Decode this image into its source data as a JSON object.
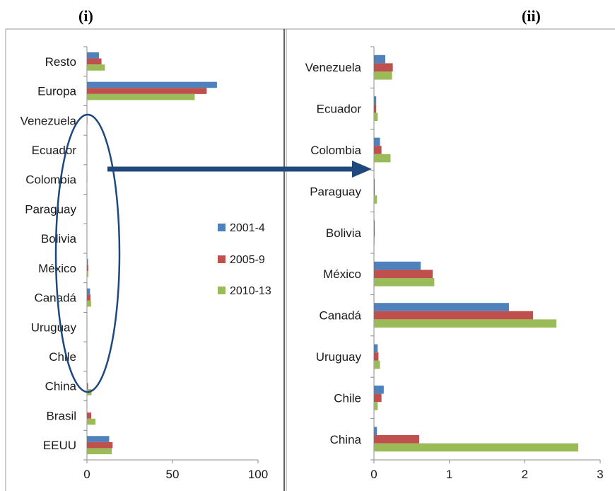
{
  "panel_labels": [
    "(i)",
    "(ii)"
  ],
  "colors": {
    "s2001": "#4f81bd",
    "s2005": "#c0504d",
    "s2010": "#9bbb59",
    "annotation": "#1f497d"
  },
  "legend": {
    "items": [
      "2001-4",
      "2005-9",
      "2010-13"
    ]
  },
  "chart_data": [
    {
      "type": "bar",
      "orientation": "horizontal",
      "panel": "(i)",
      "categories": [
        "Resto",
        "Europa",
        "Venezuela",
        "Ecuador",
        "Colombia",
        "Paraguay",
        "Bolivia",
        "México",
        "Canadá",
        "Uruguay",
        "Chile",
        "China",
        "Brasil",
        "EEUU"
      ],
      "series": [
        {
          "name": "2001-4",
          "values": [
            7,
            76,
            0.15,
            0.03,
            0.08,
            0.01,
            0.01,
            0.6,
            1.8,
            0.05,
            0.13,
            0.05,
            0,
            13
          ]
        },
        {
          "name": "2005-9",
          "values": [
            8.5,
            70,
            0.25,
            0.03,
            0.1,
            0.01,
            0.01,
            0.78,
            2.1,
            0.06,
            0.1,
            0.6,
            2.5,
            15
          ]
        },
        {
          "name": "2010-13",
          "values": [
            10.5,
            63,
            0.24,
            0.05,
            0.22,
            0.04,
            0.01,
            0.8,
            2.42,
            0.08,
            0.05,
            2.7,
            5,
            14.5
          ]
        }
      ],
      "xlim": [
        0,
        100
      ],
      "xticks": [
        "0",
        "50",
        "100"
      ],
      "legend_position": "right"
    },
    {
      "type": "bar",
      "orientation": "horizontal",
      "panel": "(ii)",
      "categories": [
        "Venezuela",
        "Ecuador",
        "Colombia",
        "Paraguay",
        "Bolivia",
        "México",
        "Canadá",
        "Uruguay",
        "Chile",
        "China"
      ],
      "series": [
        {
          "name": "2001-4",
          "values": [
            0.15,
            0.03,
            0.08,
            0.01,
            0.01,
            0.62,
            1.79,
            0.05,
            0.13,
            0.04
          ]
        },
        {
          "name": "2005-9",
          "values": [
            0.25,
            0.03,
            0.1,
            0.01,
            0.01,
            0.78,
            2.11,
            0.06,
            0.1,
            0.6
          ]
        },
        {
          "name": "2010-13",
          "values": [
            0.24,
            0.05,
            0.22,
            0.04,
            0.01,
            0.8,
            2.42,
            0.08,
            0.05,
            2.71
          ]
        }
      ],
      "xlim": [
        0,
        3
      ],
      "xticks": [
        "0",
        "1",
        "2",
        "3"
      ]
    }
  ]
}
